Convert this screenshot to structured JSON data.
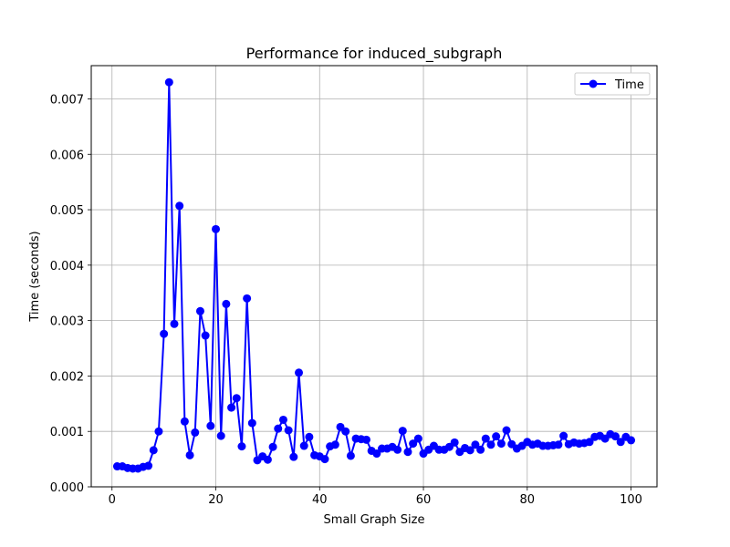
{
  "chart_data": {
    "type": "line",
    "title": "Performance for induced_subgraph",
    "xlabel": "Small Graph Size",
    "ylabel": "Time (seconds)",
    "xlim": [
      -4,
      105
    ],
    "ylim": [
      0,
      0.0076
    ],
    "xticks": [
      0,
      20,
      40,
      60,
      80,
      100
    ],
    "xtick_labels": [
      "0",
      "20",
      "40",
      "60",
      "80",
      "100"
    ],
    "yticks": [
      0,
      0.001,
      0.002,
      0.003,
      0.004,
      0.005,
      0.006,
      0.007
    ],
    "ytick_labels": [
      "0.000",
      "0.001",
      "0.002",
      "0.003",
      "0.004",
      "0.005",
      "0.006",
      "0.007"
    ],
    "grid": true,
    "legend_position": "top-right",
    "series": [
      {
        "name": "Time",
        "color": "#0000ff",
        "marker": "circle",
        "x": [
          1,
          2,
          3,
          4,
          5,
          6,
          7,
          8,
          9,
          10,
          11,
          12,
          13,
          14,
          15,
          16,
          17,
          18,
          19,
          20,
          21,
          22,
          23,
          24,
          25,
          26,
          27,
          28,
          29,
          30,
          31,
          32,
          33,
          34,
          35,
          36,
          37,
          38,
          39,
          40,
          41,
          42,
          43,
          44,
          45,
          46,
          47,
          48,
          49,
          50,
          51,
          52,
          53,
          54,
          55,
          56,
          57,
          58,
          59,
          60,
          61,
          62,
          63,
          64,
          65,
          66,
          67,
          68,
          69,
          70,
          71,
          72,
          73,
          74,
          75,
          76,
          77,
          78,
          79,
          80,
          81,
          82,
          83,
          84,
          85,
          86,
          87,
          88,
          89,
          90,
          91,
          92,
          93,
          94,
          95,
          96,
          97,
          98,
          99,
          100
        ],
        "y": [
          0.00037,
          0.00037,
          0.00034,
          0.00033,
          0.00033,
          0.00036,
          0.00038,
          0.00066,
          0.001,
          0.00276,
          0.0073,
          0.00294,
          0.00507,
          0.00118,
          0.00057,
          0.00098,
          0.00317,
          0.00273,
          0.0011,
          0.00465,
          0.00092,
          0.0033,
          0.00143,
          0.0016,
          0.00073,
          0.0034,
          0.00115,
          0.00048,
          0.00055,
          0.00049,
          0.00072,
          0.00105,
          0.00121,
          0.00102,
          0.00054,
          0.00206,
          0.00074,
          0.0009,
          0.00057,
          0.00055,
          0.0005,
          0.00073,
          0.00076,
          0.00108,
          0.001,
          0.00056,
          0.00087,
          0.00086,
          0.00085,
          0.00065,
          0.0006,
          0.00069,
          0.00069,
          0.00072,
          0.00067,
          0.00101,
          0.00063,
          0.00078,
          0.00087,
          0.0006,
          0.00067,
          0.00074,
          0.00067,
          0.00067,
          0.00072,
          0.0008,
          0.00063,
          0.0007,
          0.00066,
          0.00076,
          0.00067,
          0.00087,
          0.00076,
          0.00091,
          0.00078,
          0.00102,
          0.00077,
          0.00069,
          0.00074,
          0.00081,
          0.00076,
          0.00078,
          0.00074,
          0.00074,
          0.00075,
          0.00076,
          0.00092,
          0.00077,
          0.0008,
          0.00078,
          0.00079,
          0.00081,
          0.0009,
          0.00092,
          0.00087,
          0.00095,
          0.00091,
          0.00081,
          0.0009,
          0.00084
        ]
      }
    ]
  }
}
